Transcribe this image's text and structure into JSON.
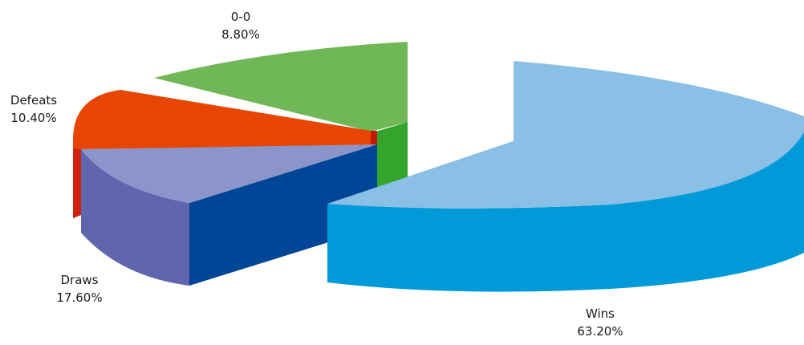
{
  "chart_data": {
    "type": "pie",
    "style": "3d-exploded",
    "slices": [
      {
        "name": "Wins",
        "percent_label": "63.20%",
        "value": 63.2,
        "top_color": "#8abfe6",
        "side_color": "#009ad9",
        "dark_color": "#0086c4"
      },
      {
        "name": "Draws",
        "percent_label": "17.60%",
        "value": 17.6,
        "top_color": "#8c95c9",
        "side_color": "#5f66ae",
        "dark_color": "#004596"
      },
      {
        "name": "Defeats",
        "percent_label": "10.40%",
        "value": 10.4,
        "top_color": "#e74502",
        "side_color": "#d0200e",
        "dark_color": "#c0180a"
      },
      {
        "name": "0-0",
        "percent_label": "8.80%",
        "value": 8.8,
        "top_color": "#70b857",
        "side_color": "#34a52b",
        "dark_color": "#2a9423"
      }
    ]
  }
}
